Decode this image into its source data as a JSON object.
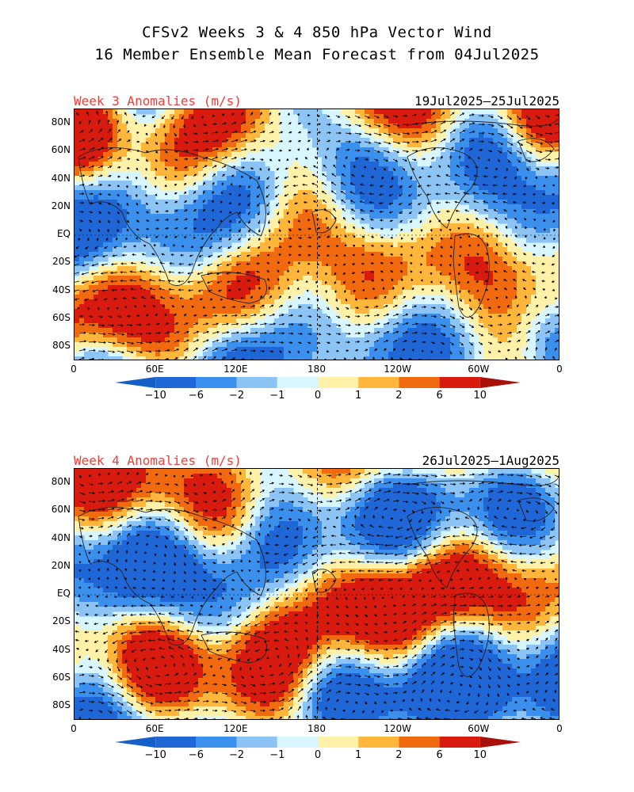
{
  "title_line1": "CFSv2 Weeks 3 & 4 850 hPa Vector Wind",
  "title_line2": "16 Member Ensemble Mean Forecast from 04Jul2025",
  "lat_ticks": [
    "80N",
    "60N",
    "40N",
    "20N",
    "EQ",
    "20S",
    "40S",
    "60S",
    "80S"
  ],
  "lon_ticks": [
    "0",
    "60E",
    "120E",
    "180",
    "120W",
    "60W",
    "0"
  ],
  "colors": {
    "bins": [
      "#1f66d6",
      "#3a90ec",
      "#8cc4f5",
      "#d8f6ff",
      "#fff2a8",
      "#ffb63a",
      "#f26a10",
      "#d91a0e"
    ],
    "min_arrow": "#1560c8",
    "max_arrow": "#a8100a",
    "label_red": "#e8403a"
  },
  "colorbar_labels": [
    "-10",
    "-6",
    "-2",
    "-1",
    "0",
    "1",
    "2",
    "6",
    "10"
  ],
  "panels": [
    {
      "label": "Week 3 Anomalies (m/s)",
      "dates": "19Jul2025—25Jul2025",
      "seed": 7
    },
    {
      "label": "Week 4 Anomalies (m/s)",
      "dates": "26Jul2025—1Aug2025",
      "seed": 23
    }
  ]
}
